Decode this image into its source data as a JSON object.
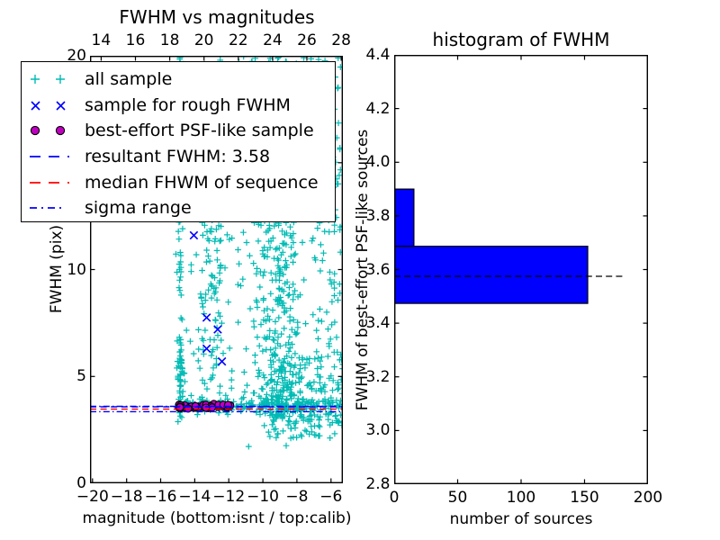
{
  "figure": {
    "background": "#ffffff"
  },
  "colors": {
    "all_sample": "#00bbb4",
    "rough_sample": "#0000ff",
    "psf_sample": "#bf00bf",
    "resultant_line": "#0000ff",
    "median_line": "#ff0000",
    "sigma_line": "#0000ff",
    "hist_bar": "#0000ff",
    "hist_marker_line": "#000000",
    "axes": "#000000"
  },
  "left_plot": {
    "title": "FWHM vs magnitudes",
    "xlabel": "magnitude (bottom:isnt / top:calib)",
    "ylabel": "FWHM (pix)",
    "bottom_tick_labels": [
      "−20",
      "−18",
      "−16",
      "−14",
      "−12",
      "−10",
      "−8",
      "−6"
    ],
    "top_tick_labels": [
      "14",
      "16",
      "18",
      "20",
      "22",
      "24",
      "26",
      "28"
    ],
    "y_tick_labels": [
      "0",
      "5",
      "10",
      "15",
      "20"
    ],
    "legend": {
      "items": [
        {
          "label": "all sample",
          "marker": "plus",
          "color": "#00bbb4"
        },
        {
          "label": "sample for rough FWHM",
          "marker": "cross",
          "color": "#0000ff"
        },
        {
          "label": "best-effort PSF-like sample",
          "marker": "circle",
          "color": "#bf00bf"
        },
        {
          "label": "resultant FWHM: 3.58",
          "marker": "dashed",
          "color": "#0000ff"
        },
        {
          "label": "median FHWM of sequence",
          "marker": "dashed",
          "color": "#ff0000"
        },
        {
          "label": "sigma range",
          "marker": "dashdot",
          "color": "#0000ff"
        }
      ]
    }
  },
  "right_plot": {
    "title": "histogram of FWHM",
    "xlabel": "number of sources",
    "ylabel": "FWHM of best-effort PSF-like sources",
    "x_tick_labels": [
      "0",
      "50",
      "100",
      "150",
      "200"
    ],
    "y_tick_labels": [
      "2.8",
      "3.0",
      "3.2",
      "3.4",
      "3.6",
      "3.8",
      "4.0",
      "4.2",
      "4.4"
    ]
  },
  "chart_data": [
    {
      "type": "scatter",
      "title": "FWHM vs magnitudes",
      "xlabel": "magnitude (bottom:isnt / top:calib)",
      "ylabel": "FWHM (pix)",
      "xlim": [
        -20.15,
        -5.3
      ],
      "ylim": [
        0,
        20
      ],
      "x_ticks": [
        -20,
        -18,
        -16,
        -14,
        -12,
        -10,
        -8,
        -6
      ],
      "y_ticks": [
        0,
        5,
        10,
        15,
        20
      ],
      "top_axis": {
        "name": "calib magnitude",
        "lim": [
          13.35,
          28.1
        ],
        "ticks": [
          14,
          16,
          18,
          20,
          22,
          24,
          26,
          28
        ]
      },
      "series": [
        {
          "name": "all sample",
          "marker": "+",
          "color": "#00bbb4",
          "clusters": [
            {
              "n": 70,
              "x": {
                "mu": -14.85,
                "sigma": 0.07
              },
              "y": {
                "min": 3.6,
                "max": 20
              }
            },
            {
              "n": 40,
              "x": {
                "mu": -14.82,
                "sigma": 0.1
              },
              "y": {
                "mu": 5.2,
                "sigma": 1.1
              }
            },
            {
              "n": 45,
              "x": {
                "mu": -13.55,
                "sigma": 0.17
              },
              "y": {
                "min": 3.8,
                "max": 20
              }
            },
            {
              "n": 55,
              "x": {
                "mu": -13.05,
                "sigma": 0.22
              },
              "y": {
                "min": 3.7,
                "max": 20
              }
            },
            {
              "n": 45,
              "x": {
                "mu": -12.5,
                "sigma": 0.17
              },
              "y": {
                "min": 3.7,
                "max": 20
              }
            },
            {
              "n": 40,
              "x": {
                "min": -14.4,
                "max": -11.8
              },
              "y": {
                "min": 4,
                "max": 20
              }
            },
            {
              "n": 270,
              "x": {
                "mu": -9.2,
                "sigma": 1.0
              },
              "y": {
                "min": 3.2,
                "max": 20
              }
            },
            {
              "n": 200,
              "x": {
                "mu": -8.9,
                "sigma": 0.55
              },
              "y": {
                "min": 3.0,
                "max": 20
              }
            },
            {
              "n": 150,
              "x": {
                "mu": -8.2,
                "sigma": 1.3
              },
              "y": {
                "mu": 4.2,
                "sigma": 0.9
              }
            },
            {
              "n": 120,
              "x": {
                "min": -6.8,
                "max": -5.3
              },
              "y": {
                "min": 2.6,
                "max": 20
              }
            },
            {
              "n": 160,
              "x": {
                "min": -15.0,
                "max": -5.3
              },
              "y": {
                "mu": 3.62,
                "sigma": 0.14
              }
            },
            {
              "n": 50,
              "x": {
                "min": -9.8,
                "max": -5.35
              },
              "y": {
                "min": 2.1,
                "max": 3.3
              }
            },
            {
              "n": 55,
              "x": {
                "min": -15.2,
                "max": -5.4
              },
              "y": {
                "min": 4,
                "max": 19.9
              }
            },
            {
              "n": 12,
              "x": {
                "min": -12.2,
                "max": -7.0
              },
              "y": {
                "min": 19.3,
                "max": 20
              }
            }
          ]
        },
        {
          "name": "sample for rough FWHM",
          "marker": "x",
          "color": "#0000ff",
          "points": [
            [
              -14.05,
              11.6
            ],
            [
              -13.3,
              7.75
            ],
            [
              -12.65,
              7.2
            ],
            [
              -13.3,
              6.3
            ],
            [
              -12.4,
              5.7
            ],
            [
              -14.85,
              3.62
            ],
            [
              -14.5,
              3.57
            ],
            [
              -14.15,
              3.6
            ],
            [
              -13.8,
              3.64
            ],
            [
              -13.45,
              3.55
            ],
            [
              -13.1,
              3.61
            ],
            [
              -12.75,
              3.58
            ],
            [
              -12.4,
              3.62
            ],
            [
              -12.05,
              3.57
            ],
            [
              -13.6,
              3.59
            ],
            [
              -12.9,
              3.63
            ],
            [
              -14.3,
              3.58
            ]
          ]
        },
        {
          "name": "best-effort PSF-like sample",
          "marker": "filled-circle",
          "color": "#bf00bf",
          "cluster": {
            "n": 42,
            "x": {
              "min": -15.0,
              "max": -11.85
            },
            "y": {
              "mu": 3.6,
              "sigma": 0.055
            }
          }
        }
      ],
      "lines": [
        {
          "name": "resultant FWHM",
          "value": 3.58,
          "style": "dashed",
          "color": "#0000ff"
        },
        {
          "name": "median FHWM of sequence",
          "value": 3.47,
          "style": "dashed",
          "color": "#ff0000"
        },
        {
          "name": "sigma range upper",
          "value": 3.6,
          "style": "dashdot",
          "color": "#0000ff"
        },
        {
          "name": "sigma range lower",
          "value": 3.35,
          "style": "dashdot",
          "color": "#0000ff"
        }
      ]
    },
    {
      "type": "bar",
      "orientation": "horizontal",
      "title": "histogram of FWHM",
      "xlabel": "number of sources",
      "ylabel": "FWHM of best-effort PSF-like sources",
      "xlim": [
        0,
        200
      ],
      "ylim": [
        2.8,
        4.4
      ],
      "x_ticks": [
        0,
        50,
        100,
        150,
        200
      ],
      "y_ticks": [
        2.8,
        3.0,
        3.2,
        3.4,
        3.6,
        3.8,
        4.0,
        4.2,
        4.4
      ],
      "bin_edges": [
        3.474,
        3.687,
        3.9
      ],
      "counts": [
        152,
        15
      ],
      "bar_color": "#0000ff",
      "marker_line": {
        "value": 3.575,
        "x_end": 182,
        "style": "dashed",
        "color": "#000000"
      }
    }
  ]
}
